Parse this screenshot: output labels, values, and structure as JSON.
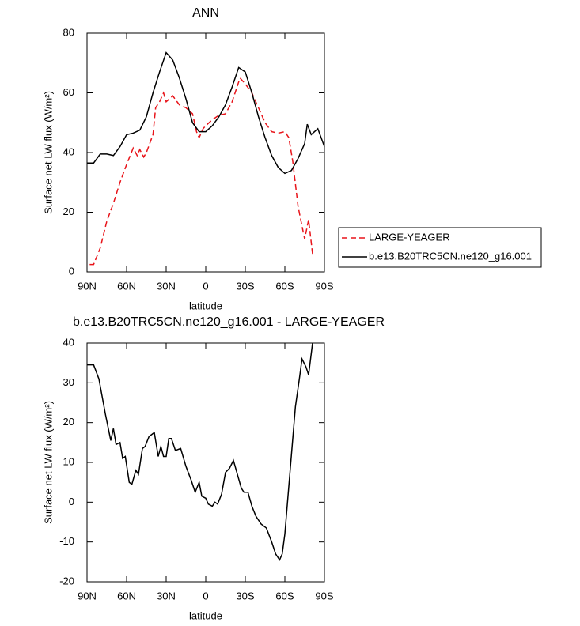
{
  "chart_data": [
    {
      "type": "line",
      "title": "ANN",
      "x_label": "latitude",
      "y_label": "Surface net LW flux (W/m²)",
      "xlim": [
        90,
        -90
      ],
      "xticks": [
        {
          "value": 90,
          "label": "90N"
        },
        {
          "value": 60,
          "label": "60N"
        },
        {
          "value": 30,
          "label": "30N"
        },
        0,
        {
          "value": -30,
          "label": "30S"
        },
        {
          "value": -60,
          "label": "60S"
        },
        {
          "value": -90,
          "label": "90S"
        }
      ],
      "ylim": [
        0,
        80
      ],
      "yticks": [
        0,
        20,
        40,
        60,
        80
      ],
      "legend": "right",
      "series": [
        {
          "name": "LARGE-YEAGER",
          "color": "#e8141a",
          "dashed": true,
          "x": [
            88,
            85,
            80,
            75,
            70,
            65,
            60,
            55,
            52,
            50,
            47,
            45,
            40,
            38,
            35,
            32,
            30,
            25,
            20,
            15,
            10,
            7,
            5,
            2,
            0,
            -5,
            -10,
            -15,
            -20,
            -23,
            -26,
            -30,
            -35,
            -40,
            -45,
            -50,
            -55,
            -60,
            -63,
            -66,
            -70,
            -75,
            -78,
            -81
          ],
          "values": [
            2.5,
            2.5,
            8,
            17,
            23,
            30,
            36,
            41.5,
            39,
            41,
            38.5,
            40,
            46,
            55,
            57,
            60,
            57,
            59,
            56,
            55,
            53,
            47,
            45,
            48,
            49,
            51,
            52.5,
            53,
            57,
            61,
            65,
            63,
            60,
            55,
            50,
            47,
            46.5,
            47,
            45,
            37,
            22,
            11,
            17.5,
            6
          ]
        },
        {
          "name": "b.e13.B20TRC5CN.ne120_g16.001",
          "color": "#000000",
          "dashed": false,
          "x": [
            90,
            85,
            80,
            75,
            70,
            65,
            60,
            55,
            50,
            45,
            40,
            35,
            30,
            25,
            20,
            15,
            10,
            5,
            0,
            -5,
            -10,
            -15,
            -20,
            -25,
            -30,
            -35,
            -40,
            -45,
            -50,
            -55,
            -60,
            -65,
            -70,
            -75,
            -77,
            -80,
            -85,
            -90
          ],
          "values": [
            36.5,
            36.5,
            39.5,
            39.5,
            39,
            42,
            46,
            46.5,
            47.5,
            52,
            60,
            67,
            73.5,
            71,
            65,
            58,
            50,
            47,
            47,
            49,
            52,
            56,
            62,
            68.5,
            67,
            60,
            52,
            45,
            39,
            35,
            33,
            34,
            38,
            43,
            49.5,
            46,
            48,
            42
          ]
        }
      ]
    },
    {
      "type": "line",
      "title": "b.e13.B20TRC5CN.ne120_g16.001 - LARGE-YEAGER",
      "x_label": "latitude",
      "y_label": "Surface net LW flux (W/m²)",
      "xlim": [
        90,
        -90
      ],
      "xticks": [
        {
          "value": 90,
          "label": "90N"
        },
        {
          "value": 60,
          "label": "60N"
        },
        {
          "value": 30,
          "label": "30N"
        },
        0,
        {
          "value": -30,
          "label": "30S"
        },
        {
          "value": -60,
          "label": "60S"
        },
        {
          "value": -90,
          "label": "90S"
        }
      ],
      "ylim": [
        -20,
        40
      ],
      "yticks": [
        -20,
        -10,
        0,
        10,
        20,
        30,
        40
      ],
      "series": [
        {
          "color": "#000000",
          "dashed": false,
          "x": [
            90,
            85,
            81,
            76,
            72,
            70,
            68,
            65,
            63,
            61,
            58,
            56,
            53,
            51,
            48,
            46,
            43,
            39,
            36,
            34,
            32,
            30,
            28,
            26,
            23,
            19,
            15,
            11,
            8,
            5,
            3,
            0,
            -2,
            -5,
            -7,
            -9,
            -12,
            -15,
            -18,
            -21,
            -24,
            -27,
            -29,
            -32,
            -35,
            -38,
            -42,
            -46,
            -50,
            -53,
            -56,
            -58,
            -60,
            -62,
            -65,
            -68,
            -71,
            -73,
            -76,
            -78,
            -81
          ],
          "values": [
            34.5,
            34.5,
            31,
            22,
            15.5,
            18.5,
            14.5,
            15,
            11,
            11.5,
            5,
            4.5,
            8,
            7,
            13.5,
            14,
            16.5,
            17.5,
            11.5,
            14,
            11.5,
            11.5,
            16,
            16,
            13,
            13.5,
            9,
            5.5,
            2.5,
            5,
            1.5,
            1,
            -0.5,
            -1,
            0,
            -0.5,
            2,
            7.5,
            8.5,
            10.5,
            7,
            3.5,
            2.5,
            2.5,
            -1,
            -3.5,
            -5.5,
            -6.5,
            -10,
            -13,
            -14.5,
            -13,
            -8,
            0,
            12,
            24,
            31,
            36,
            34,
            32,
            40
          ]
        }
      ]
    }
  ]
}
